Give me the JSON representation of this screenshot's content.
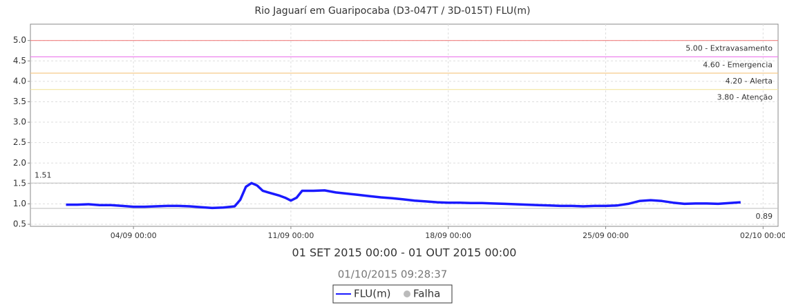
{
  "chart_data": {
    "type": "line",
    "title": "Rio Jaguarí em Guaripocaba (D3-047T / 3D-015T) FLU(m)",
    "x_label": "01 SET 2015 00:00 - 01 OUT 2015 00:00",
    "timestamp": "01/10/2015 09:28:37",
    "x": [
      "01/09 00:00",
      "01/09 12:00",
      "02/09 00:00",
      "02/09 12:00",
      "03/09 00:00",
      "03/09 12:00",
      "04/09 00:00",
      "04/09 12:00",
      "05/09 00:00",
      "05/09 12:00",
      "06/09 00:00",
      "06/09 12:00",
      "07/09 00:00",
      "07/09 12:00",
      "08/09 00:00",
      "08/09 12:00",
      "08/09 18:00",
      "09/09 00:00",
      "09/09 06:00",
      "09/09 12:00",
      "09/09 18:00",
      "10/09 00:00",
      "10/09 12:00",
      "10/09 18:00",
      "11/09 00:00",
      "11/09 06:00",
      "11/09 12:00",
      "12/09 00:00",
      "12/09 12:00",
      "13/09 00:00",
      "13/09 12:00",
      "14/09 00:00",
      "14/09 12:00",
      "15/09 00:00",
      "15/09 12:00",
      "16/09 00:00",
      "16/09 12:00",
      "17/09 00:00",
      "17/09 12:00",
      "18/09 00:00",
      "18/09 12:00",
      "19/09 00:00",
      "19/09 12:00",
      "20/09 00:00",
      "20/09 12:00",
      "21/09 00:00",
      "21/09 12:00",
      "22/09 00:00",
      "22/09 12:00",
      "23/09 00:00",
      "23/09 12:00",
      "24/09 00:00",
      "24/09 12:00",
      "25/09 00:00",
      "25/09 12:00",
      "26/09 00:00",
      "26/09 12:00",
      "27/09 00:00",
      "27/09 12:00",
      "28/09 00:00",
      "28/09 12:00",
      "29/09 00:00",
      "29/09 12:00",
      "30/09 00:00",
      "30/09 12:00",
      "01/10 00:00"
    ],
    "series": [
      {
        "name": "FLU(m)",
        "color": "#1a1aff",
        "values": [
          0.98,
          0.98,
          0.99,
          0.97,
          0.97,
          0.95,
          0.93,
          0.93,
          0.94,
          0.95,
          0.95,
          0.94,
          0.92,
          0.9,
          0.91,
          0.94,
          1.1,
          1.42,
          1.51,
          1.45,
          1.32,
          1.28,
          1.2,
          1.15,
          1.08,
          1.15,
          1.32,
          1.32,
          1.33,
          1.28,
          1.25,
          1.22,
          1.19,
          1.16,
          1.14,
          1.11,
          1.08,
          1.06,
          1.04,
          1.03,
          1.03,
          1.02,
          1.02,
          1.01,
          1.0,
          0.99,
          0.98,
          0.97,
          0.96,
          0.95,
          0.95,
          0.94,
          0.95,
          0.95,
          0.96,
          1.0,
          1.07,
          1.09,
          1.07,
          1.03,
          1.0,
          1.01,
          1.01,
          1.0,
          1.02,
          1.04
        ]
      }
    ],
    "legend_extra": {
      "name": "Falha",
      "color": "#bbbbbb"
    },
    "thresholds": [
      {
        "value": 5.0,
        "label": "5.00 - Extravasamento",
        "color": "#f08080"
      },
      {
        "value": 4.6,
        "label": "4.60 - Emergencia",
        "color": "#ee82ee"
      },
      {
        "value": 4.2,
        "label": "4.20 - Alerta",
        "color": "#f5c98a"
      },
      {
        "value": 3.8,
        "label": "3.80 - Atenção",
        "color": "#f2e6a0"
      }
    ],
    "max_line": 1.51,
    "min_line": 0.89,
    "xlim": [
      "30/08 10:00",
      "02/10 16:00"
    ],
    "xticks": [
      "04/09 00:00",
      "11/09 00:00",
      "18/09 00:00",
      "25/09 00:00",
      "02/10 00:00"
    ],
    "ylim": [
      0.45,
      5.4
    ],
    "yticks": [
      0.5,
      {
        "value": 1.0,
        "label": "1.0"
      },
      1.5,
      {
        "value": 2.0,
        "label": "2.0"
      },
      2.5,
      {
        "value": 3.0,
        "label": "3.0"
      },
      3.5,
      {
        "value": 4.0,
        "label": "4.0"
      },
      4.5,
      {
        "value": 5.0,
        "label": "5.0"
      }
    ],
    "grid": true
  }
}
